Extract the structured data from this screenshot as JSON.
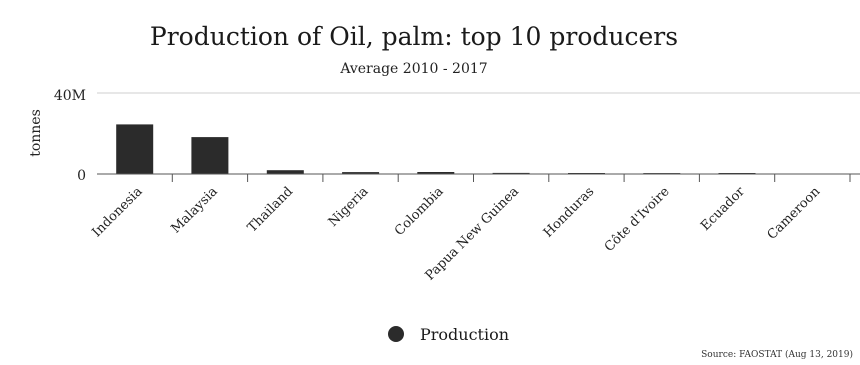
{
  "chart_data": {
    "type": "bar",
    "title": "Production of Oil, palm: top 10 producers",
    "subtitle": "Average 2010 - 2017",
    "ylabel": "tonnes",
    "xlabel": "",
    "yticks": [
      "0",
      "40M"
    ],
    "ylim": [
      0,
      40000000
    ],
    "grid": true,
    "legend_position": "bottom",
    "color": "#2b2b2b",
    "categories": [
      "Indonesia",
      "Malaysia",
      "Thailand",
      "Nigeria",
      "Colombia",
      "Papua New Guinea",
      "Honduras",
      "Côte d'Ivoire",
      "Ecuador",
      "Cameroon"
    ],
    "series": [
      {
        "name": "Production",
        "values": [
          24500000,
          18200000,
          1900000,
          950000,
          1000000,
          550000,
          480000,
          420000,
          500000,
          270000
        ]
      }
    ]
  },
  "source": "Source: FAOSTAT (Aug 13, 2019)"
}
